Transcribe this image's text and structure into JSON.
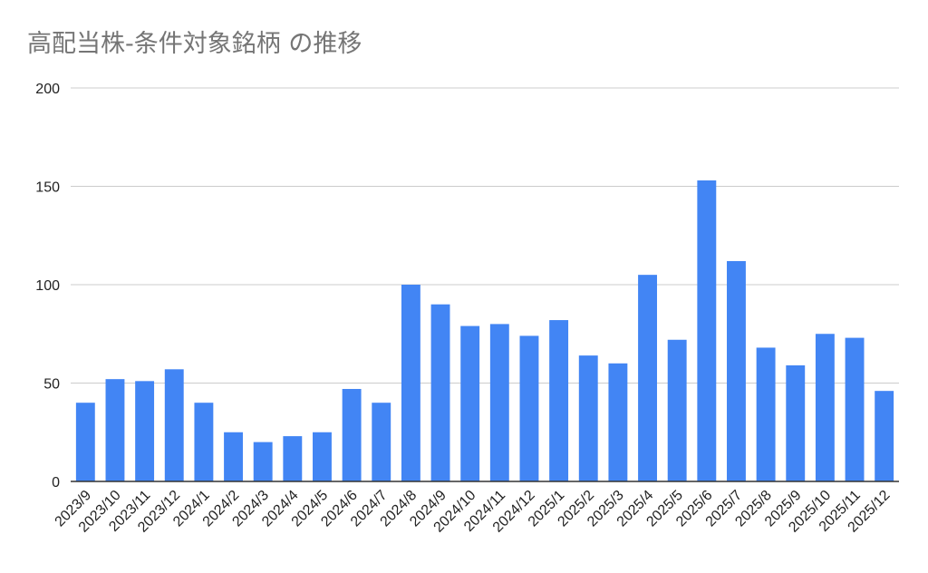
{
  "chart_data": {
    "type": "bar",
    "title": "高配当株-条件対象銘柄 の推移",
    "xlabel": "",
    "ylabel": "",
    "ylim": [
      0,
      200
    ],
    "yticks": [
      0,
      50,
      100,
      150,
      200
    ],
    "grid": true,
    "categories": [
      "2023/9",
      "2023/10",
      "2023/11",
      "2023/12",
      "2024/1",
      "2024/2",
      "2024/3",
      "2024/4",
      "2024/5",
      "2024/6",
      "2024/7",
      "2024/8",
      "2024/9",
      "2024/10",
      "2024/11",
      "2024/12",
      "2025/1",
      "2025/2",
      "2025/3",
      "2025/4",
      "2025/5",
      "2025/6",
      "2025/7",
      "2025/8",
      "2025/9",
      "2025/10",
      "2025/11",
      "2025/12"
    ],
    "values": [
      40,
      52,
      51,
      57,
      40,
      25,
      20,
      23,
      25,
      47,
      40,
      100,
      90,
      79,
      80,
      74,
      82,
      64,
      60,
      105,
      72,
      153,
      112,
      68,
      59,
      75,
      73,
      46
    ],
    "bar_color": "#4285F4"
  }
}
